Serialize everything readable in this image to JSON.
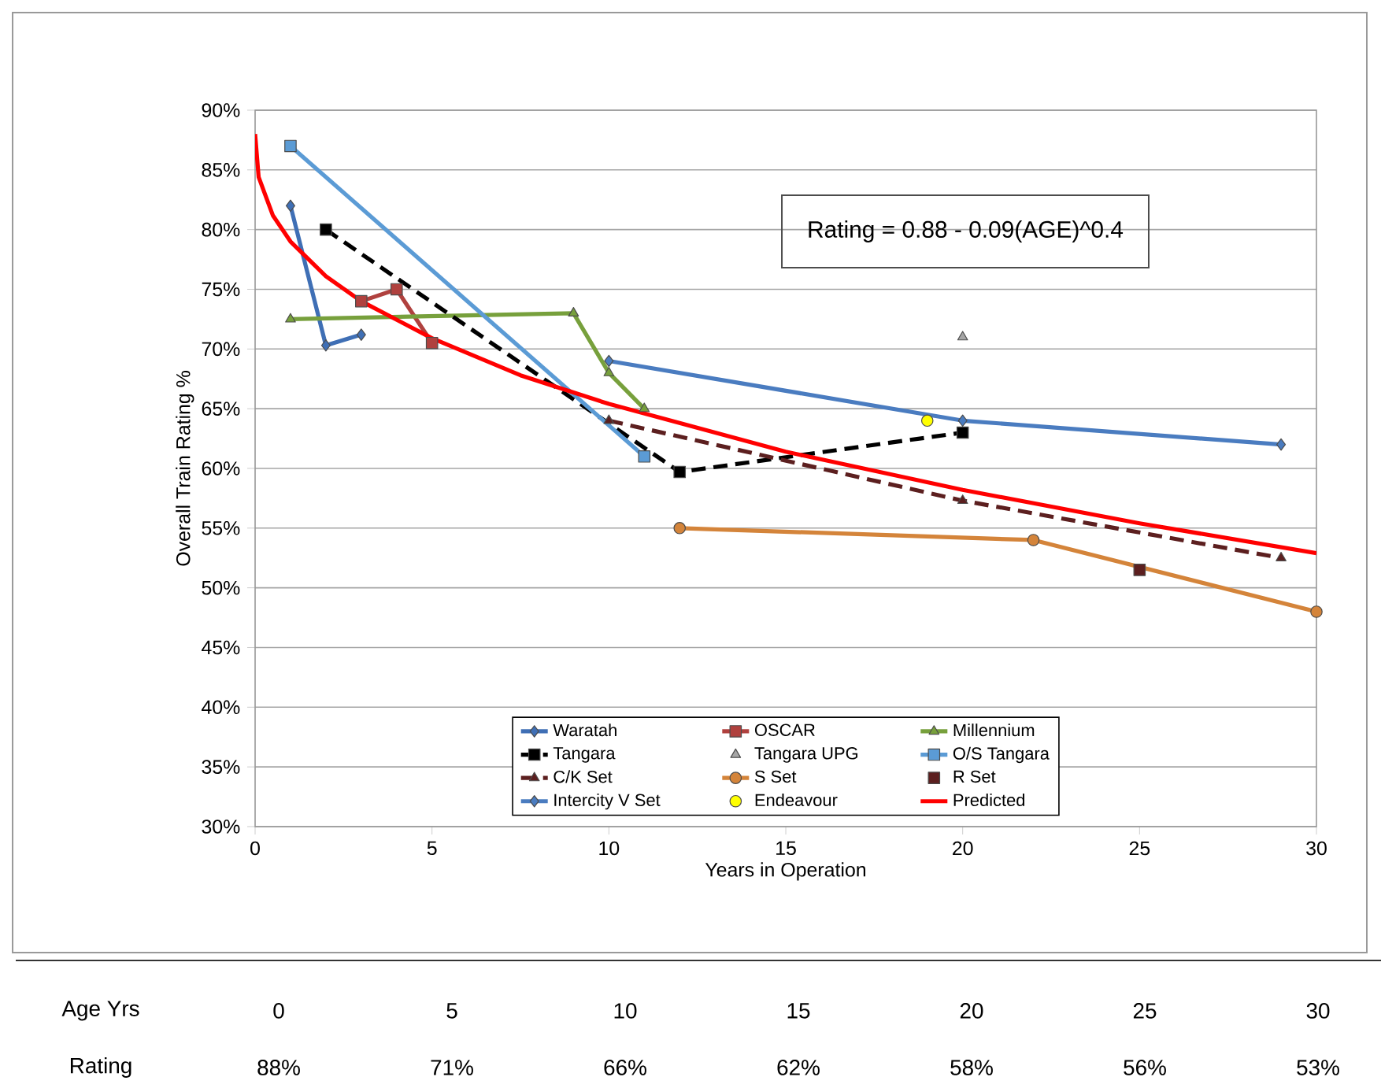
{
  "chart_data": {
    "type": "line",
    "xlabel": "Years in Operation",
    "ylabel": "Overall Train Rating %",
    "xlim": [
      0,
      30
    ],
    "xticks": [
      0,
      5,
      10,
      15,
      20,
      25,
      30
    ],
    "ylim": [
      30,
      90
    ],
    "yticks": [
      {
        "value": 30,
        "label": "30%"
      },
      {
        "value": 35,
        "label": "35%"
      },
      {
        "value": 40,
        "label": "40%"
      },
      {
        "value": 45,
        "label": "45%"
      },
      {
        "value": 50,
        "label": "50%"
      },
      {
        "value": 55,
        "label": "55%"
      },
      {
        "value": 60,
        "label": "60%"
      },
      {
        "value": 65,
        "label": "65%"
      },
      {
        "value": 70,
        "label": "70%"
      },
      {
        "value": 75,
        "label": "75%"
      },
      {
        "value": 80,
        "label": "80%"
      },
      {
        "value": 85,
        "label": "85%"
      },
      {
        "value": 90,
        "label": "90%"
      }
    ],
    "grid": "y",
    "legend": "bottom",
    "series": [
      {
        "name": "Waratah",
        "color": "#3f6fb5",
        "marker": "diamond",
        "x": [
          1,
          2,
          3
        ],
        "values": [
          82,
          70.3,
          71.2
        ]
      },
      {
        "name": "OSCAR",
        "color": "#b0413e",
        "marker": "square",
        "x": [
          3,
          4,
          5
        ],
        "values": [
          74,
          75,
          70.5
        ]
      },
      {
        "name": "Millennium",
        "color": "#77a03c",
        "marker": "triangle",
        "x": [
          1,
          9,
          10,
          11
        ],
        "values": [
          72.5,
          73,
          68,
          65
        ]
      },
      {
        "name": "Tangara",
        "color": "#000000",
        "marker": "square",
        "line_style": "dashed",
        "x": [
          2,
          12,
          20
        ],
        "values": [
          80,
          59.7,
          63
        ]
      },
      {
        "name": "Tangara UPG",
        "color": "#a6a6a6",
        "type": "scatter",
        "marker": "triangle",
        "x": [
          20
        ],
        "values": [
          71
        ]
      },
      {
        "name": "O/S Tangara",
        "color": "#5b9bd5",
        "marker": "square",
        "x": [
          1,
          11
        ],
        "values": [
          87,
          61
        ]
      },
      {
        "name": "C/K Set",
        "color": "#5c1f1f",
        "marker": "triangle",
        "line_style": "dashed",
        "x": [
          10,
          20,
          29
        ],
        "values": [
          64,
          57.3,
          52.5
        ]
      },
      {
        "name": "S Set",
        "color": "#d4843a",
        "marker": "circle",
        "x": [
          12,
          22,
          30
        ],
        "values": [
          55,
          54,
          48
        ]
      },
      {
        "name": "R Set",
        "color": "#5c1f1f",
        "type": "scatter",
        "marker": "square",
        "x": [
          25
        ],
        "values": [
          51.5
        ]
      },
      {
        "name": "Intercity V Set",
        "color": "#4a7cc0",
        "marker": "diamond",
        "x": [
          10,
          20,
          29
        ],
        "values": [
          69,
          64,
          62
        ]
      },
      {
        "name": "Endeavour",
        "color": "#ffff00",
        "type": "scatter",
        "marker": "circle",
        "x": [
          19
        ],
        "values": [
          64
        ]
      },
      {
        "name": "Predicted",
        "color": "#ff0000",
        "marker": "none",
        "x": [
          0,
          0.1,
          0.5,
          1,
          2,
          3,
          5,
          7.5,
          10,
          15,
          20,
          25,
          30
        ],
        "values": [
          88,
          84.4,
          81.2,
          79,
          76.1,
          74,
          70.9,
          67.8,
          65.4,
          61.4,
          58.2,
          55.4,
          52.9
        ]
      }
    ],
    "annotations": [
      "Rating = 0.88 - 0.09(AGE)^0.4",
      "Age Yrs",
      "0",
      "5",
      "10",
      "15",
      "20",
      "25",
      "30",
      "Rating",
      "88%",
      "71%",
      "66%",
      "62%",
      "58%",
      "56%",
      "53%"
    ]
  }
}
